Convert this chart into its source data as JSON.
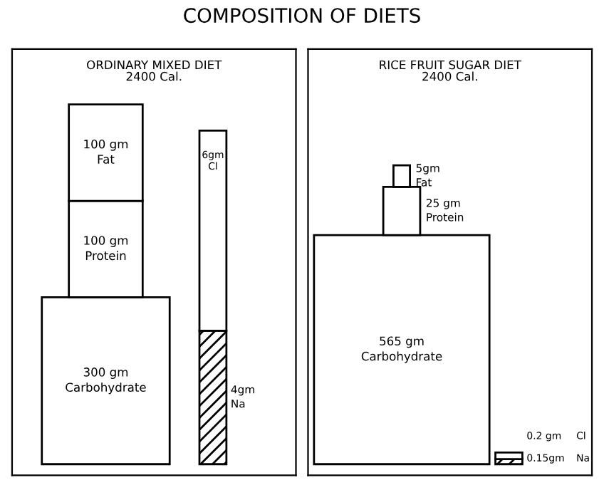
{
  "chart_data": [
    {
      "type": "other",
      "title": "COMPOSITION OF DIETS",
      "subtitle": "ORDINARY MIXED DIET\n2400 Cal.",
      "categories": [
        "Fat",
        "Protein",
        "Carbohydrate",
        "Cl",
        "Na"
      ],
      "values": [
        100,
        100,
        300,
        6,
        4
      ],
      "value_labels": [
        "100 gm",
        "100 gm",
        "300 gm",
        "6gm",
        "4gm"
      ],
      "colors": [
        "#ffffff",
        "#ffffff",
        "#ffffff",
        "#ffffff",
        "#ffffff"
      ]
    },
    {
      "type": "other",
      "subtitle": "RICE FRUIT SUGAR DIET\n2400 Cal.",
      "categories": [
        "Fat",
        "Protein",
        "Carbohydrate",
        "Cl",
        "Na"
      ],
      "values": [
        5,
        25,
        565,
        0.2,
        0.15
      ],
      "value_labels": [
        "5gm",
        "25 gm",
        "565 gm",
        "0.2 gm",
        "0.15gm"
      ],
      "colors": [
        "#ffffff",
        "#ffffff",
        "#ffffff",
        "#ffffff",
        "#ffffff"
      ]
    }
  ]
}
